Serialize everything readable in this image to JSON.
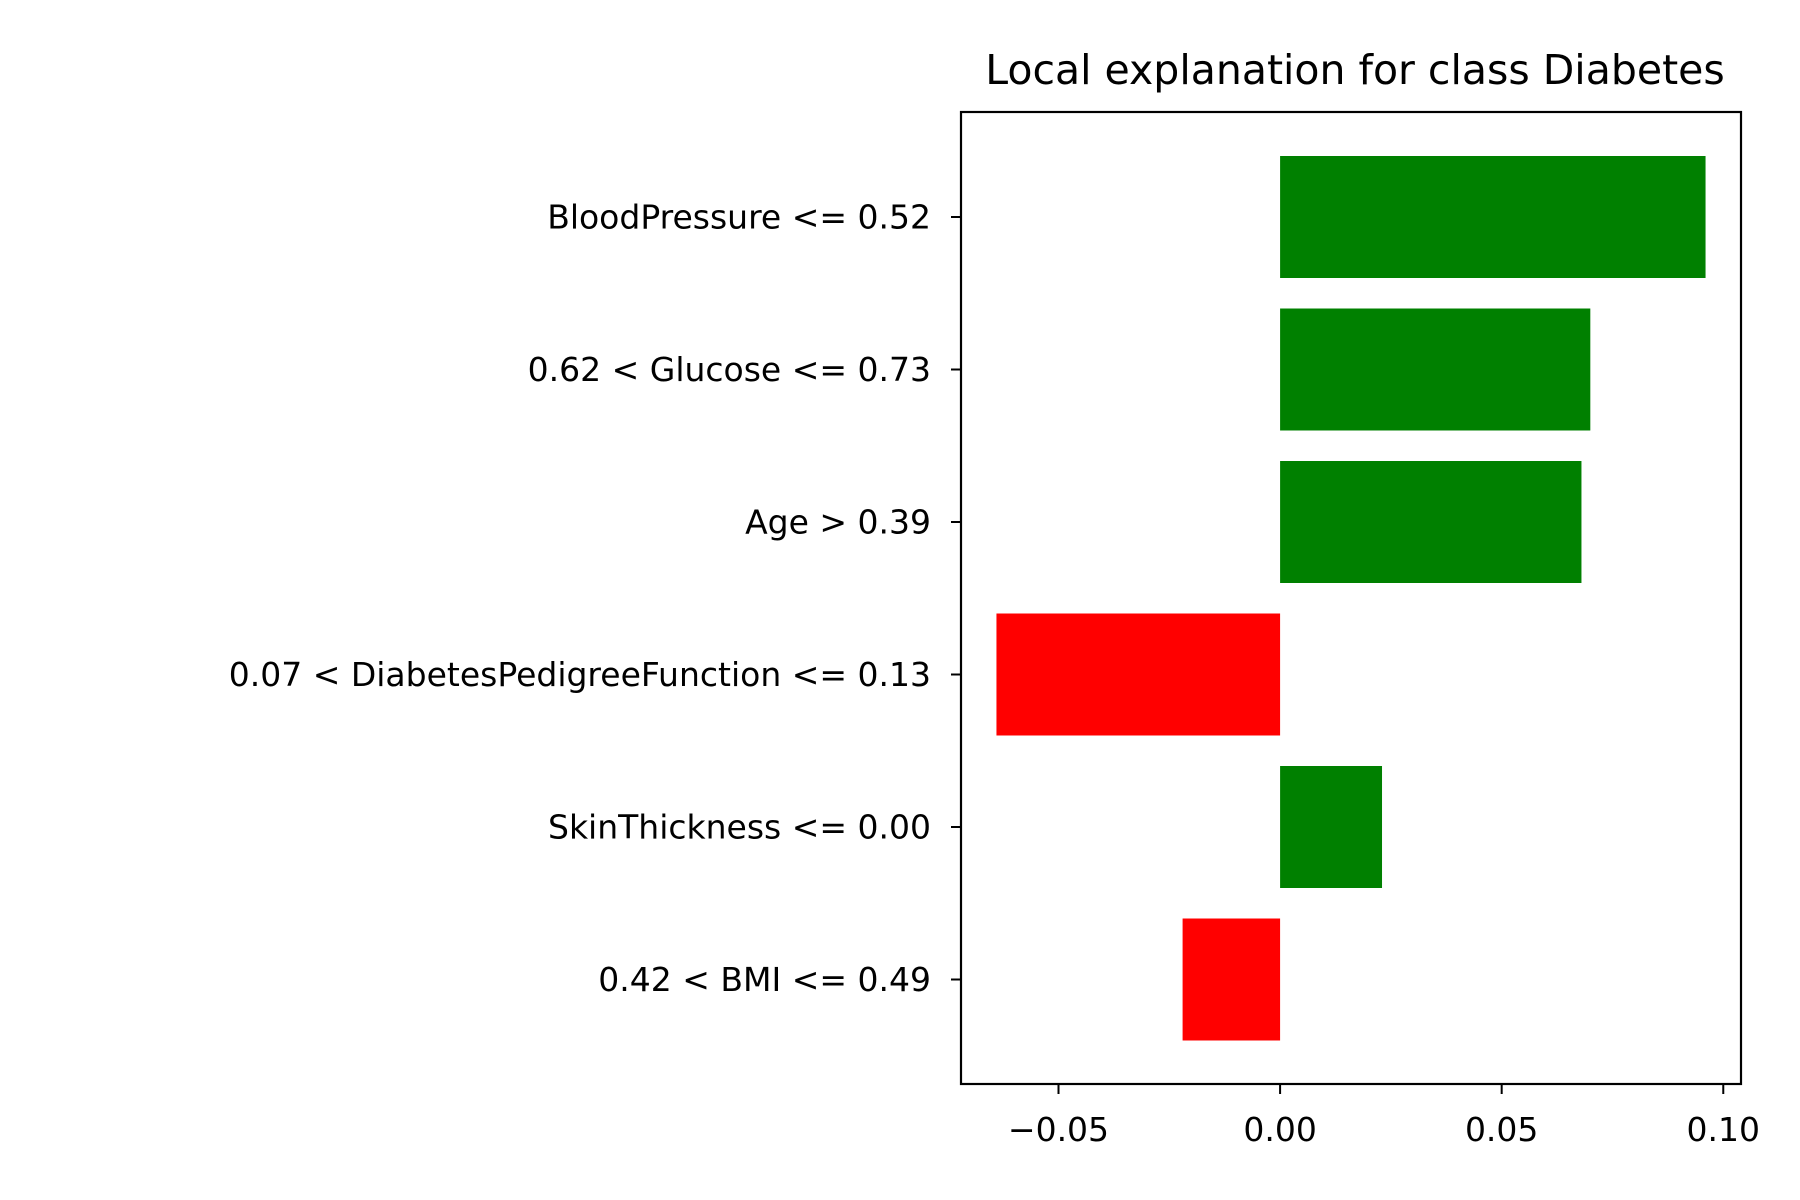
{
  "chart_data": {
    "type": "bar",
    "orientation": "horizontal",
    "title": "Local explanation for class Diabetes",
    "xlabel": "",
    "ylabel": "",
    "categories": [
      "BloodPressure <= 0.52",
      "0.62 < Glucose <= 0.73",
      "Age > 0.39",
      "0.07 < DiabetesPedigreeFunction <= 0.13",
      "SkinThickness <= 0.00",
      "0.42 < BMI <= 0.49"
    ],
    "values": [
      0.096,
      0.07,
      0.068,
      -0.064,
      0.023,
      -0.022
    ],
    "xlim": [
      -0.072,
      0.104
    ],
    "x_ticks": [
      -0.05,
      0.0,
      0.05,
      0.1
    ],
    "x_tick_labels": [
      "−0.05",
      "0.00",
      "0.05",
      "0.10"
    ],
    "grid": false,
    "legend": "none",
    "colors": {
      "positive": "#008000",
      "negative": "#ff0000",
      "axis": "#000000"
    }
  }
}
